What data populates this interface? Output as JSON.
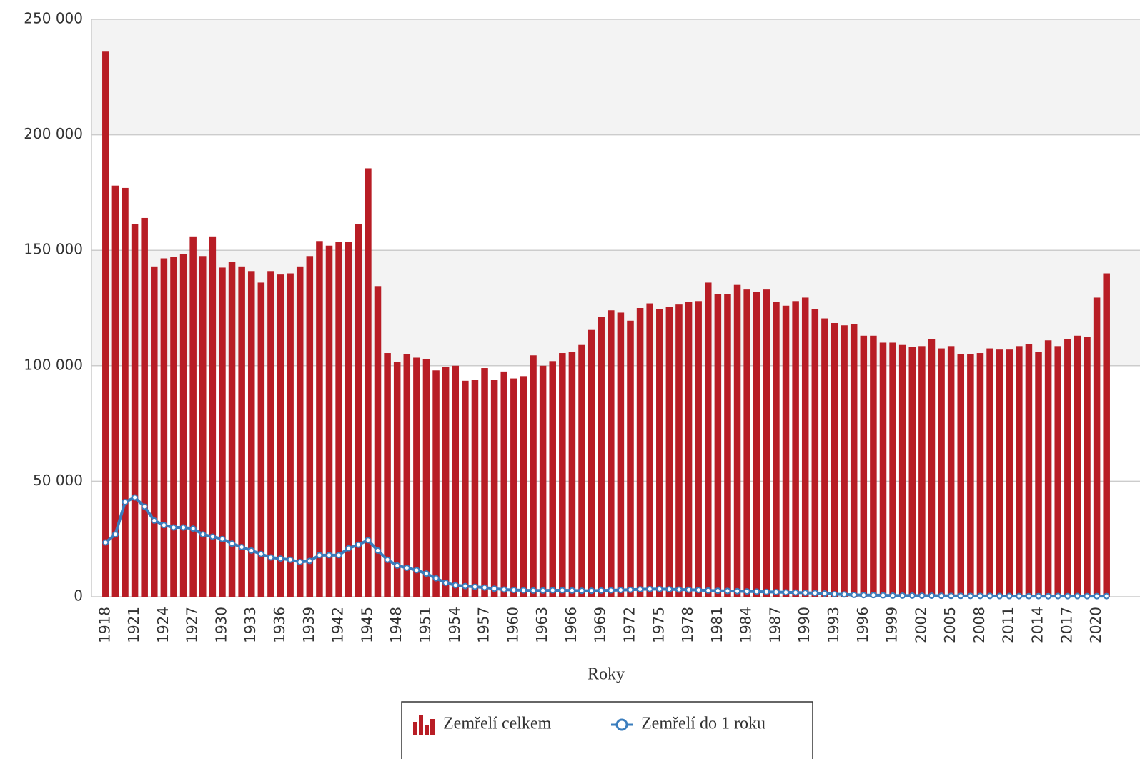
{
  "chart_data": {
    "type": "bar+line",
    "x_label": "Roky",
    "categories": [
      "1918",
      null,
      null,
      "1921",
      null,
      null,
      "1924",
      null,
      null,
      "1927",
      null,
      null,
      "1930",
      null,
      null,
      "1933",
      null,
      null,
      "1936",
      null,
      null,
      "1939",
      null,
      null,
      "1942",
      null,
      null,
      "1945",
      null,
      null,
      "1948",
      null,
      null,
      "1951",
      null,
      null,
      "1954",
      null,
      null,
      "1957",
      null,
      null,
      "1960",
      null,
      null,
      "1963",
      null,
      null,
      "1966",
      null,
      null,
      "1969",
      null,
      null,
      "1972",
      null,
      null,
      "1975",
      null,
      null,
      "1978",
      null,
      null,
      "1981",
      null,
      null,
      "1984",
      null,
      null,
      "1987",
      null,
      null,
      "1990",
      null,
      null,
      "1993",
      null,
      null,
      "1996",
      null,
      null,
      "1999",
      null,
      null,
      "2002",
      null,
      null,
      "2005",
      null,
      null,
      "2008",
      null,
      null,
      "2011",
      null,
      null,
      "2014",
      null,
      null,
      "2017",
      null,
      null,
      "2020",
      null
    ],
    "series": [
      {
        "name": "Zemřelí celkem",
        "type": "bar",
        "color": "#b81d25",
        "values": [
          236000,
          178000,
          177000,
          161500,
          164000,
          143000,
          146500,
          147000,
          148500,
          156000,
          147500,
          156000,
          142500,
          145000,
          143000,
          141000,
          136000,
          141000,
          139500,
          140000,
          143000,
          147500,
          154000,
          152000,
          153500,
          153500,
          161500,
          185500,
          134500,
          105500,
          101500,
          105000,
          103500,
          103000,
          98000,
          99500,
          100000,
          93500,
          94000,
          99000,
          94000,
          97500,
          94500,
          95500,
          104500,
          100000,
          102000,
          105500,
          106000,
          109000,
          115500,
          121000,
          124000,
          123000,
          119500,
          125000,
          127000,
          124500,
          125500,
          126500,
          127500,
          128000,
          136000,
          131000,
          131000,
          135000,
          133000,
          132000,
          133000,
          127500,
          126000,
          128000,
          129500,
          124500,
          120500,
          118500,
          117500,
          118000,
          113000,
          113000,
          110000,
          110000,
          109000,
          108000,
          108500,
          111500,
          107500,
          108500,
          105000,
          105000,
          105500,
          107500,
          107000,
          107000,
          108500,
          109500,
          106000,
          111000,
          108500,
          111500,
          113000,
          112500,
          129500,
          140000
        ]
      },
      {
        "name": "Zemřelí do 1 roku",
        "type": "line",
        "color": "#3a7dbd",
        "values": [
          23500,
          27000,
          41000,
          43000,
          39000,
          33000,
          31000,
          30000,
          30000,
          29500,
          27000,
          26000,
          25000,
          23000,
          21500,
          20000,
          18500,
          17000,
          16500,
          16000,
          15000,
          15500,
          18000,
          18000,
          18000,
          21000,
          22500,
          24500,
          20000,
          16000,
          13500,
          12500,
          11500,
          10000,
          8000,
          6000,
          5000,
          4600,
          4300,
          4000,
          3500,
          3100,
          2900,
          2800,
          2700,
          2700,
          2800,
          2800,
          2700,
          2600,
          2600,
          2700,
          2800,
          2900,
          3000,
          3200,
          3300,
          3300,
          3200,
          3100,
          3000,
          2900,
          2700,
          2600,
          2500,
          2400,
          2300,
          2200,
          2100,
          2000,
          1900,
          1800,
          1700,
          1600,
          1400,
          1100,
          1000,
          800,
          700,
          700,
          600,
          500,
          500,
          500,
          450,
          450,
          420,
          380,
          370,
          360,
          360,
          350,
          300,
          300,
          290,
          270,
          280,
          250,
          300,
          290,
          300,
          280,
          260,
          270
        ]
      }
    ],
    "ylim": [
      0,
      250000
    ],
    "yticks": [
      {
        "value": 0,
        "label": "0"
      },
      {
        "value": 50000,
        "label": "50 000"
      },
      {
        "value": 100000,
        "label": "100 000"
      },
      {
        "value": 150000,
        "label": "150 000"
      },
      {
        "value": 200000,
        "label": "200 000"
      },
      {
        "value": 250000,
        "label": "250 000"
      }
    ],
    "grid": true,
    "legend": "bottom"
  }
}
